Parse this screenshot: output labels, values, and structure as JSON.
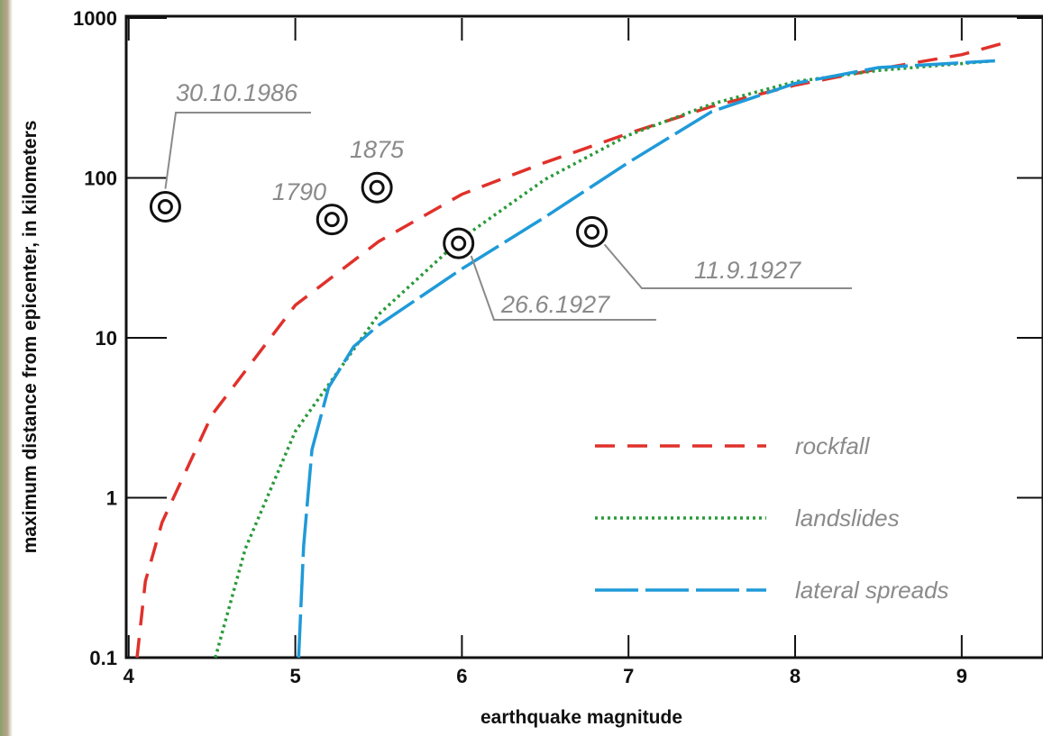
{
  "chart_data": {
    "type": "line",
    "x_label": "earthquake magnitude",
    "y_label": "maximum distance from epicenter, in kilometers",
    "xlim": [
      3.985,
      9.45
    ],
    "xticks": [
      4,
      5,
      6,
      7,
      8,
      9
    ],
    "ylim": [
      0.1,
      1000
    ],
    "yticks": [
      0.1,
      1,
      10,
      100,
      1000
    ],
    "log_y": true,
    "legend": "lower right",
    "series": [
      {
        "name": "rockfall",
        "color": "#e0312b",
        "dash": "dashed",
        "x": [
          4.05,
          4.1,
          4.2,
          4.5,
          5,
          5.5,
          6,
          6.5,
          7,
          7.5,
          8,
          8.5,
          9,
          9.3
        ],
        "values": [
          0.1,
          0.3,
          0.7,
          3.3,
          16,
          40,
          79,
          125,
          190,
          280,
          380,
          480,
          590,
          720
        ]
      },
      {
        "name": "landslides",
        "color": "#2a9a3a",
        "dash": "dotted",
        "x": [
          4.52,
          4.7,
          5,
          5.5,
          6,
          6.5,
          7,
          7.5,
          8,
          8.5,
          9.2
        ],
        "values": [
          0.1,
          0.48,
          2.6,
          14,
          42,
          98,
          185,
          290,
          400,
          470,
          540
        ]
      },
      {
        "name": "lateral spreads",
        "color": "#1f9ad8",
        "dash": "longdash",
        "x": [
          5.02,
          5.05,
          5.1,
          5.2,
          5.35,
          5.5,
          6,
          6.5,
          7,
          7.5,
          8,
          8.5,
          9.2
        ],
        "values": [
          0.1,
          0.5,
          2,
          4.9,
          8.8,
          12,
          27,
          57,
          125,
          260,
          390,
          490,
          540
        ]
      }
    ],
    "events": {
      "labels": [
        "30.10.1986",
        "1790",
        "1875",
        "26.6.1927",
        "11.9.1927"
      ],
      "x": [
        4.22,
        5.22,
        5.49,
        5.98,
        6.78
      ],
      "values": [
        66,
        55,
        87,
        39,
        46
      ]
    }
  }
}
